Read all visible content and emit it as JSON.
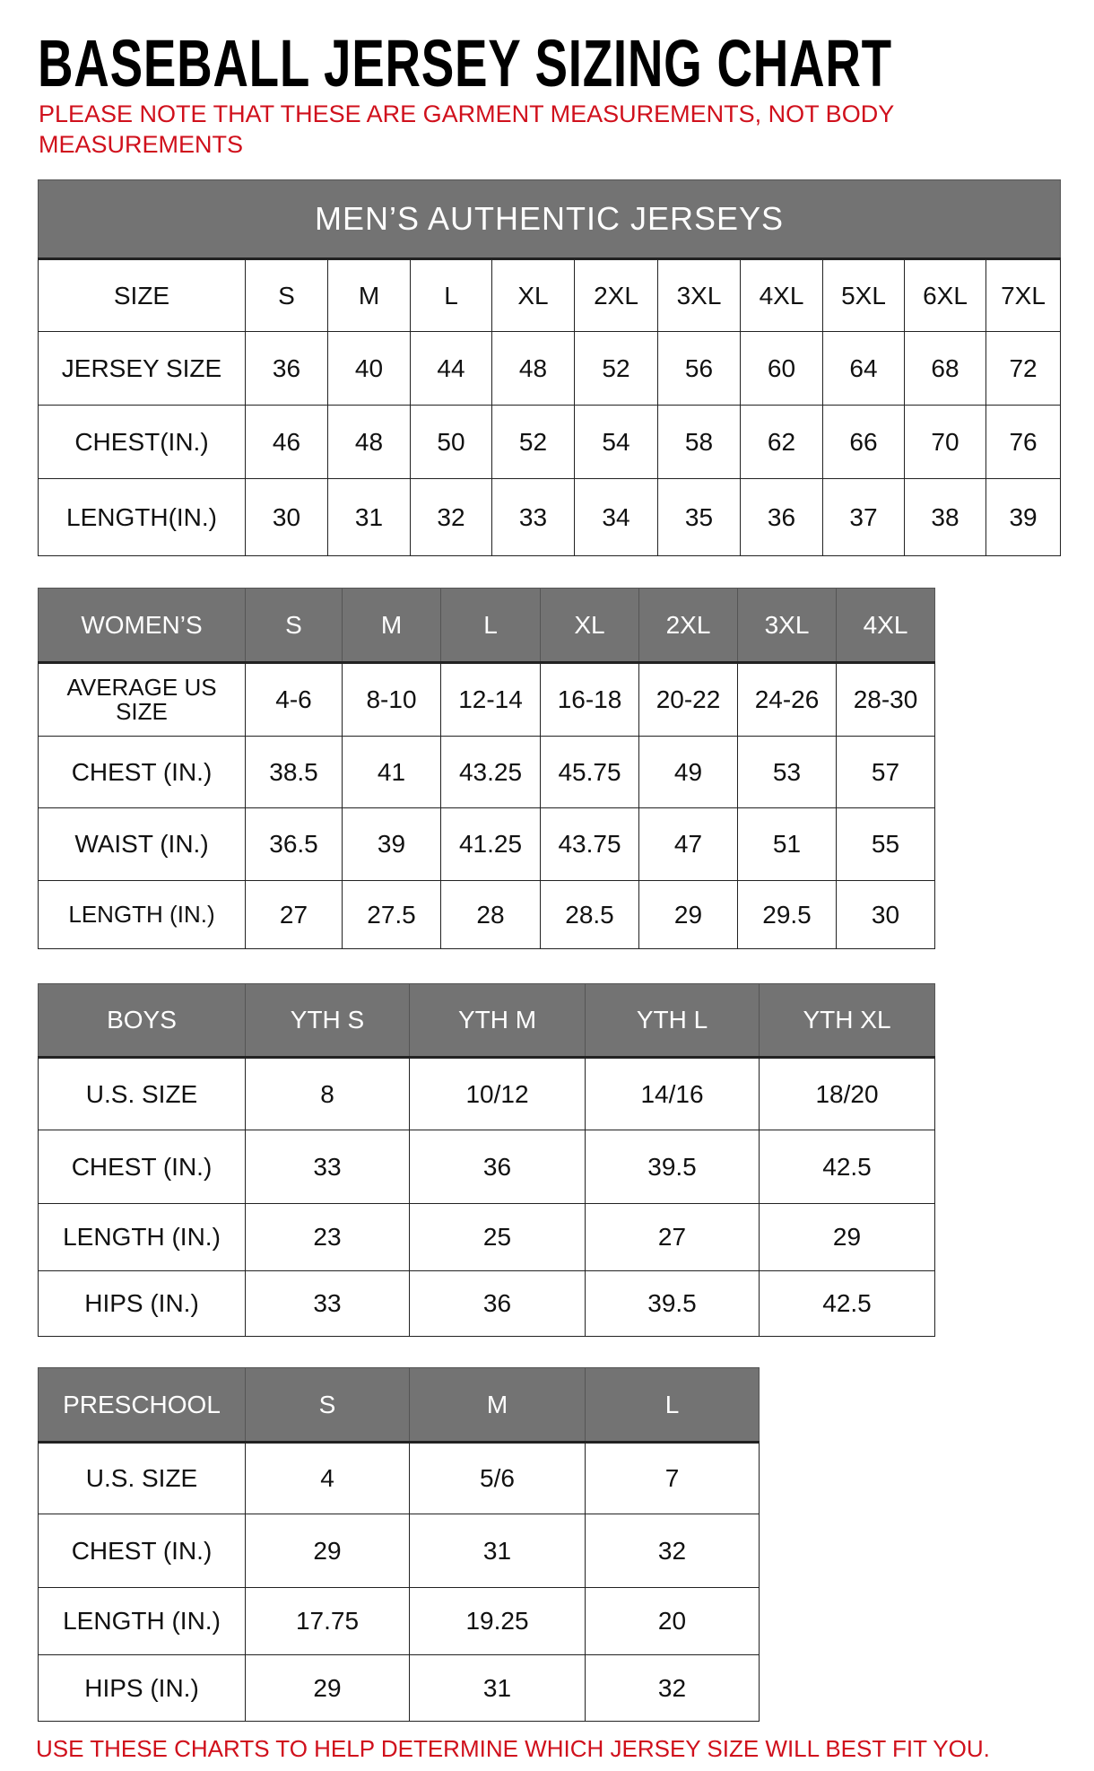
{
  "title": "BASEBALL JERSEY SIZING CHART",
  "note_line1": "PLEASE NOTE THAT THESE ARE GARMENT MEASUREMENTS, NOT BODY",
  "note_line2": "MEASUREMENTS",
  "footer": "USE THESE CHARTS TO HELP DETERMINE WHICH JERSEY SIZE WILL BEST FIT YOU.",
  "colors": {
    "header_gray": "#737373",
    "note_red": "#d0101c"
  },
  "tables": [
    {
      "id": "mens",
      "banner": "MEN’S AUTHENTIC JERSEYS",
      "header": [
        "SIZE",
        "S",
        "M",
        "L",
        "XL",
        "2XL",
        "3XL",
        "4XL",
        "5XL",
        "6XL",
        "7XL"
      ],
      "header_style": "plain",
      "rows": [
        [
          "JERSEY SIZE",
          "36",
          "40",
          "44",
          "48",
          "52",
          "56",
          "60",
          "64",
          "68",
          "72"
        ],
        [
          "CHEST(IN.)",
          "46",
          "48",
          "50",
          "52",
          "54",
          "58",
          "62",
          "66",
          "70",
          "76"
        ],
        [
          "LENGTH(IN.)",
          "30",
          "31",
          "32",
          "33",
          "34",
          "35",
          "36",
          "37",
          "38",
          "39"
        ]
      ]
    },
    {
      "id": "womens",
      "header": [
        "WOMEN’S",
        "S",
        "M",
        "L",
        "XL",
        "2XL",
        "3XL",
        "4XL"
      ],
      "header_style": "gray",
      "rows": [
        [
          "AVERAGE US SIZE",
          "4-6",
          "8-10",
          "12-14",
          "16-18",
          "20-22",
          "24-26",
          "28-30"
        ],
        [
          "CHEST (IN.)",
          "38.5",
          "41",
          "43.25",
          "45.75",
          "49",
          "53",
          "57"
        ],
        [
          "WAIST (IN.)",
          "36.5",
          "39",
          "41.25",
          "43.75",
          "47",
          "51",
          "55"
        ],
        [
          "LENGTH (IN.)",
          "27",
          "27.5",
          "28",
          "28.5",
          "29",
          "29.5",
          "30"
        ]
      ]
    },
    {
      "id": "boys",
      "header": [
        "BOYS",
        "YTH S",
        "YTH M",
        "YTH L",
        "YTH XL"
      ],
      "header_style": "gray",
      "rows": [
        [
          "U.S. SIZE",
          "8",
          "10/12",
          "14/16",
          "18/20"
        ],
        [
          "CHEST (IN.)",
          "33",
          "36",
          "39.5",
          "42.5"
        ],
        [
          "LENGTH (IN.)",
          "23",
          "25",
          "27",
          "29"
        ],
        [
          "HIPS (IN.)",
          "33",
          "36",
          "39.5",
          "42.5"
        ]
      ]
    },
    {
      "id": "preschool",
      "header": [
        "PRESCHOOL",
        "S",
        "M",
        "L"
      ],
      "header_style": "gray",
      "rows": [
        [
          "U.S. SIZE",
          "4",
          "5/6",
          "7"
        ],
        [
          "CHEST (IN.)",
          "29",
          "31",
          "32"
        ],
        [
          "LENGTH (IN.)",
          "17.75",
          "19.25",
          "20"
        ],
        [
          "HIPS (IN.)",
          "29",
          "31",
          "32"
        ]
      ]
    }
  ]
}
